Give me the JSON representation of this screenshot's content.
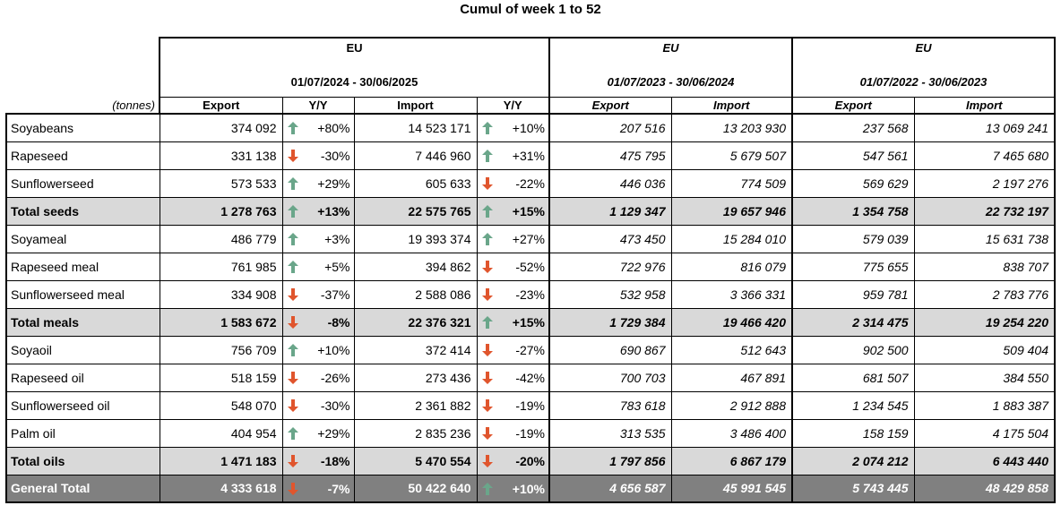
{
  "title": "Cumul of week 1 to 52",
  "unit_label": "(tonnes)",
  "colors": {
    "up": "#6aa68a",
    "down": "#e0552d",
    "total_bg": "#d9d9d9",
    "grand_bg": "#808080"
  },
  "groups": [
    {
      "label": "EU",
      "period": "01/07/2024 - 30/06/2025",
      "cols": [
        "Export",
        "Y/Y",
        "Import",
        "Y/Y"
      ]
    },
    {
      "label": "EU",
      "period": "01/07/2023 - 30/06/2024",
      "cols": [
        "Export",
        "Import"
      ]
    },
    {
      "label": "EU",
      "period": "01/07/2022 - 30/06/2023",
      "cols": [
        "Export",
        "Import"
      ]
    }
  ],
  "rows": [
    {
      "name": "Soyabeans",
      "type": "normal",
      "e25": "374 092",
      "ey_dir": "up",
      "ey": "+80%",
      "i25": "14 523 171",
      "iy_dir": "up",
      "iy": "+10%",
      "e24": "207 516",
      "i24": "13 203 930",
      "e23": "237 568",
      "i23": "13 069 241"
    },
    {
      "name": "Rapeseed",
      "type": "normal",
      "e25": "331 138",
      "ey_dir": "down",
      "ey": "-30%",
      "i25": "7 446 960",
      "iy_dir": "up",
      "iy": "+31%",
      "e24": "475 795",
      "i24": "5 679 507",
      "e23": "547 561",
      "i23": "7 465 680"
    },
    {
      "name": "Sunflowerseed",
      "type": "normal",
      "e25": "573 533",
      "ey_dir": "up",
      "ey": "+29%",
      "i25": "605 633",
      "iy_dir": "down",
      "iy": "-22%",
      "e24": "446 036",
      "i24": "774 509",
      "e23": "569 629",
      "i23": "2 197 276"
    },
    {
      "name": "Total seeds",
      "type": "total",
      "e25": "1 278 763",
      "ey_dir": "up",
      "ey": "+13%",
      "i25": "22 575 765",
      "iy_dir": "up",
      "iy": "+15%",
      "e24": "1 129 347",
      "i24": "19 657 946",
      "e23": "1 354 758",
      "i23": "22 732 197"
    },
    {
      "name": "Soyameal",
      "type": "normal",
      "e25": "486 779",
      "ey_dir": "up",
      "ey": "+3%",
      "i25": "19 393 374",
      "iy_dir": "up",
      "iy": "+27%",
      "e24": "473 450",
      "i24": "15 284 010",
      "e23": "579 039",
      "i23": "15 631 738"
    },
    {
      "name": "Rapeseed meal",
      "type": "normal",
      "e25": "761 985",
      "ey_dir": "up",
      "ey": "+5%",
      "i25": "394 862",
      "iy_dir": "down",
      "iy": "-52%",
      "e24": "722 976",
      "i24": "816 079",
      "e23": "775 655",
      "i23": "838 707"
    },
    {
      "name": "Sunflowerseed meal",
      "type": "normal",
      "e25": "334 908",
      "ey_dir": "down",
      "ey": "-37%",
      "i25": "2 588 086",
      "iy_dir": "down",
      "iy": "-23%",
      "e24": "532 958",
      "i24": "3 366 331",
      "e23": "959 781",
      "i23": "2 783 776"
    },
    {
      "name": "Total meals",
      "type": "total",
      "e25": "1 583 672",
      "ey_dir": "down",
      "ey": "-8%",
      "i25": "22 376 321",
      "iy_dir": "up",
      "iy": "+15%",
      "e24": "1 729 384",
      "i24": "19 466 420",
      "e23": "2 314 475",
      "i23": "19 254 220"
    },
    {
      "name": "Soyaoil",
      "type": "normal",
      "e25": "756 709",
      "ey_dir": "up",
      "ey": "+10%",
      "i25": "372 414",
      "iy_dir": "down",
      "iy": "-27%",
      "e24": "690 867",
      "i24": "512 643",
      "e23": "902 500",
      "i23": "509 404"
    },
    {
      "name": "Rapeseed oil",
      "type": "normal",
      "e25": "518 159",
      "ey_dir": "down",
      "ey": "-26%",
      "i25": "273 436",
      "iy_dir": "down",
      "iy": "-42%",
      "e24": "700 703",
      "i24": "467 891",
      "e23": "681 507",
      "i23": "384 550"
    },
    {
      "name": "Sunflowerseed oil",
      "type": "normal",
      "e25": "548 070",
      "ey_dir": "down",
      "ey": "-30%",
      "i25": "2 361 882",
      "iy_dir": "down",
      "iy": "-19%",
      "e24": "783 618",
      "i24": "2 912 888",
      "e23": "1 234 545",
      "i23": "1 883 387"
    },
    {
      "name": "Palm oil",
      "type": "normal",
      "e25": "404 954",
      "ey_dir": "up",
      "ey": "+29%",
      "i25": "2 835 236",
      "iy_dir": "down",
      "iy": "-19%",
      "e24": "313 535",
      "i24": "3 486 400",
      "e23": "158 159",
      "i23": "4 175 504"
    },
    {
      "name": "Total oils",
      "type": "total",
      "e25": "1 471 183",
      "ey_dir": "down",
      "ey": "-18%",
      "i25": "5 470 554",
      "iy_dir": "down",
      "iy": "-20%",
      "e24": "1 797 856",
      "i24": "6 867 179",
      "e23": "2 074 212",
      "i23": "6 443 440"
    },
    {
      "name": "General Total",
      "type": "grand",
      "e25": "4 333 618",
      "ey_dir": "down",
      "ey": "-7%",
      "i25": "50 422 640",
      "iy_dir": "up",
      "iy": "+10%",
      "e24": "4 656 587",
      "i24": "45 991 545",
      "e23": "5 743 445",
      "i23": "48 429 858"
    }
  ]
}
